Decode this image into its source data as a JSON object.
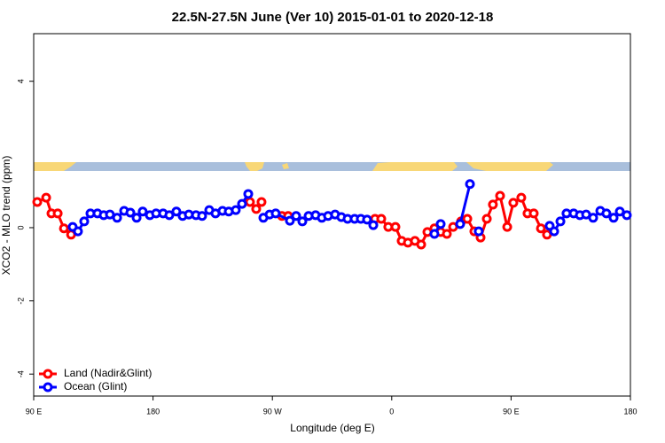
{
  "chart_data": {
    "type": "line",
    "title": "22.5N-27.5N June (Ver 10)   2015-01-01 to 2020-12-18",
    "x_label": "Longitude (deg E)",
    "y_label": "XCO2 - MLO trend (ppm)",
    "xlim": [
      90,
      540
    ],
    "ylim": [
      -4.6,
      5.3
    ],
    "xticks": [
      {
        "value": 90,
        "label": "90 E"
      },
      {
        "value": 180,
        "label": "180"
      },
      {
        "value": 270,
        "label": "90 W"
      },
      {
        "value": 360,
        "label": "0"
      },
      {
        "value": 450,
        "label": "90 E"
      },
      {
        "value": 540,
        "label": "180"
      }
    ],
    "yticks": [
      -4,
      -2,
      0,
      4
    ],
    "legend": "bottom-left",
    "series": [
      {
        "name": "Land (Nadir&Glint)",
        "color": "#ff0000",
        "x": [
          92.7,
          99.4,
          103.4,
          108.1,
          112.8,
          118.2,
          null,
          253.1,
          257.8,
          261.8,
          null,
          277.2,
          281.9,
          null,
          347.4,
          352.1,
          357.4,
          362.8,
          367.5,
          372.2,
          377.5,
          382.2,
          386.9,
          392.2,
          396.9,
          401.6,
          406.3,
          412.3,
          417.0,
          422.3,
          427.0,
          431.7,
          436.3,
          441.7,
          447.1,
          451.7,
          457.7,
          462.4,
          467.1,
          472.5,
          477.1
        ],
        "values": [
          0.7,
          0.82,
          0.39,
          0.39,
          -0.02,
          -0.19,
          null,
          0.7,
          0.51,
          0.7,
          null,
          0.32,
          0.32,
          null,
          0.24,
          0.24,
          0.02,
          0.02,
          -0.36,
          -0.41,
          -0.36,
          -0.46,
          -0.12,
          -0.02,
          -0.12,
          -0.17,
          0.02,
          0.17,
          0.24,
          -0.1,
          -0.27,
          0.24,
          0.63,
          0.87,
          0.02,
          0.68,
          0.82,
          0.39,
          0.39,
          -0.02,
          -0.19
        ]
      },
      {
        "name": "Ocean (Glint)",
        "color": "#0000ff",
        "x": [
          119.4,
          123.4,
          128.1,
          132.8,
          138.1,
          142.8,
          147.5,
          152.9,
          158.2,
          162.9,
          167.6,
          172.2,
          177.6,
          182.3,
          187.6,
          192.3,
          197.6,
          202.3,
          207.0,
          212.4,
          217.0,
          222.4,
          227.1,
          232.4,
          237.1,
          242.4,
          247.1,
          251.8,
          null,
          263.2,
          267.9,
          272.5,
          283.2,
          287.9,
          292.6,
          297.3,
          302.6,
          307.3,
          312.0,
          317.3,
          322.0,
          326.7,
          332.0,
          336.7,
          341.4,
          346.1,
          null,
          392.2,
          396.9,
          null,
          411.6,
          419.0,
          null,
          425.6,
          null,
          479.1,
          482.5,
          487.2,
          491.8,
          497.2,
          501.9,
          506.6,
          511.9,
          517.3,
          521.9,
          527.3,
          532.0,
          537.3
        ],
        "values": [
          0.02,
          -0.1,
          0.17,
          0.39,
          0.39,
          0.34,
          0.36,
          0.27,
          0.46,
          0.41,
          0.27,
          0.44,
          0.34,
          0.39,
          0.39,
          0.34,
          0.44,
          0.32,
          0.36,
          0.34,
          0.32,
          0.48,
          0.39,
          0.46,
          0.44,
          0.48,
          0.65,
          0.92,
          null,
          0.27,
          0.36,
          0.39,
          0.19,
          0.32,
          0.17,
          0.32,
          0.34,
          0.27,
          0.32,
          0.36,
          0.29,
          0.24,
          0.24,
          0.24,
          0.22,
          0.07,
          null,
          -0.17,
          0.1,
          null,
          0.1,
          1.19,
          null,
          -0.1,
          null,
          0.05,
          -0.1,
          0.17,
          0.39,
          0.39,
          0.34,
          0.36,
          0.27,
          0.46,
          0.39,
          0.27,
          0.44,
          0.34
        ]
      }
    ]
  }
}
